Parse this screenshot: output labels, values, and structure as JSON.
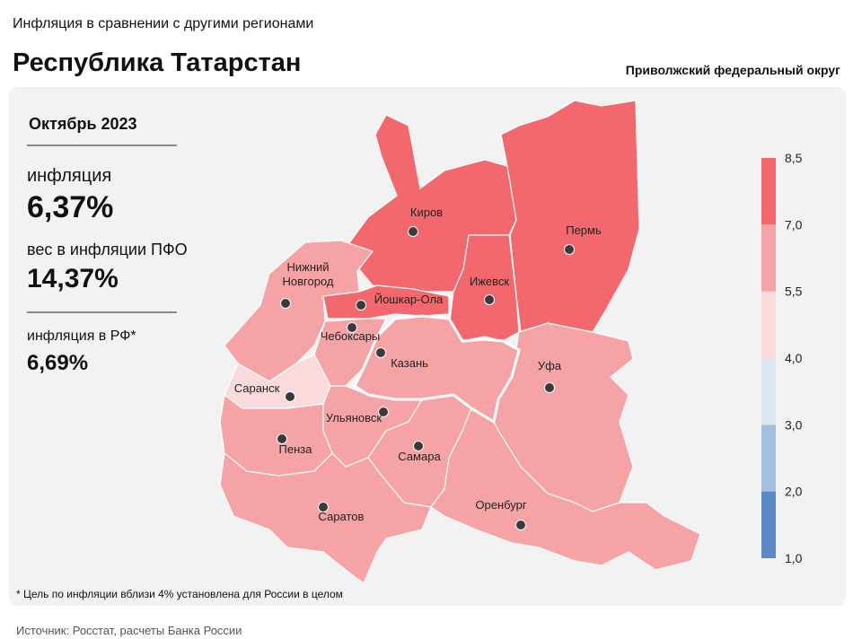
{
  "header": {
    "subtitle": "Инфляция в сравнении с другими регионами",
    "title": "Республика Татарстан",
    "district": "Приволжский федеральный округ"
  },
  "panel": {
    "period": "Октябрь 2023",
    "inflation_label": "инфляция",
    "inflation_value": "6,37%",
    "weight_label": "вес в инфляции ПФО",
    "weight_value": "14,37%",
    "rf_label": "инфляция в РФ*",
    "rf_value": "6,69%"
  },
  "map": {
    "cities": [
      "Киров",
      "Пермь",
      "Нижний Новгород",
      "Йошкар-Ола",
      "Ижевск",
      "Чебоксары",
      "Казань",
      "Уфа",
      "Саранск",
      "Ульяновск",
      "Пенза",
      "Самара",
      "Саратов",
      "Оренбург"
    ]
  },
  "legend": {
    "labels": [
      "8,5",
      "7,0",
      "5,5",
      "4,0",
      "3,0",
      "2,0",
      "1,0"
    ],
    "colors": [
      "#f2686d",
      "#f6a3a5",
      "#fadadc",
      "#dde6f3",
      "#a4bee0",
      "#5b8ac6"
    ]
  },
  "footnote": "* Цель по инфляции вблизи 4% установлена для России в целом",
  "source": "Источник: Росстат, расчеты Банка России"
}
